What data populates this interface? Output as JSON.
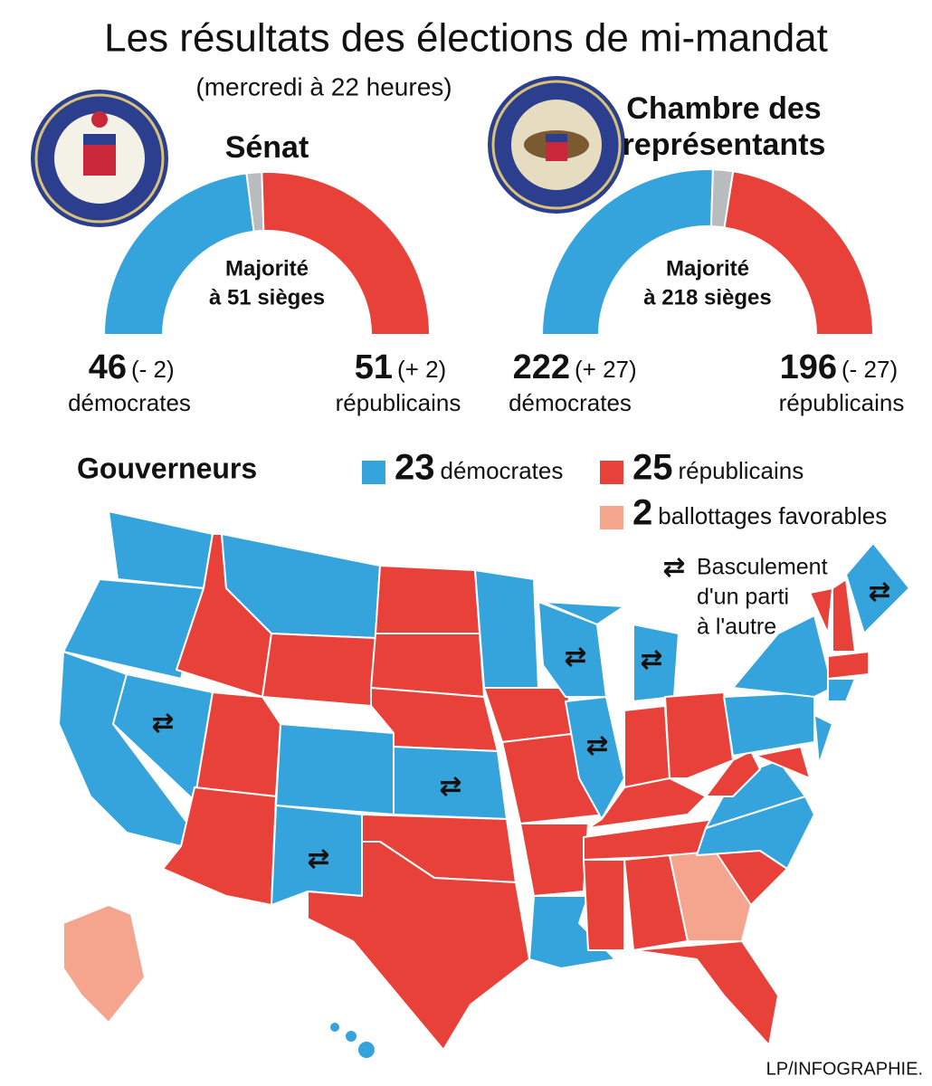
{
  "header": {
    "title": "Les résultats des élections de mi-mandat",
    "subtitle": "(mercredi à 22 heures)"
  },
  "chart_data": [
    {
      "type": "half-donut",
      "title": [
        "Sénat"
      ],
      "annotation": [
        "Majorité",
        "à 51 sièges"
      ],
      "categories": [
        "démocrates",
        null,
        "républicains"
      ],
      "values": [
        46,
        3,
        51
      ],
      "changes": [
        "(- 2)",
        null,
        "(+ 2)"
      ],
      "colors": [
        "#35a4dc",
        "#b9bcbe",
        "#e8413a"
      ]
    },
    {
      "type": "half-donut",
      "title": [
        "Chambre des",
        "représentants"
      ],
      "annotation": [
        "Majorité",
        "à 218 sièges"
      ],
      "categories": [
        "démocrates",
        null,
        "républicains"
      ],
      "values": [
        222,
        17,
        196
      ],
      "changes": [
        "(+ 27)",
        null,
        "(- 27)"
      ],
      "colors": [
        "#35a4dc",
        "#b9bcbe",
        "#e8413a"
      ]
    }
  ],
  "governors": {
    "title": "Gouverneurs",
    "items": [
      {
        "value": 23,
        "label": "démocrates",
        "color": "#35a4dc"
      },
      {
        "value": 25,
        "label": "républicains",
        "color": "#e8413a"
      },
      {
        "value": 2,
        "label": "ballottages favorables",
        "color": "#f5a58e"
      }
    ],
    "flip_note": [
      "Basculement",
      "d'un parti",
      "à l'autre"
    ]
  },
  "credit": "LP/INFOGRAPHIE."
}
